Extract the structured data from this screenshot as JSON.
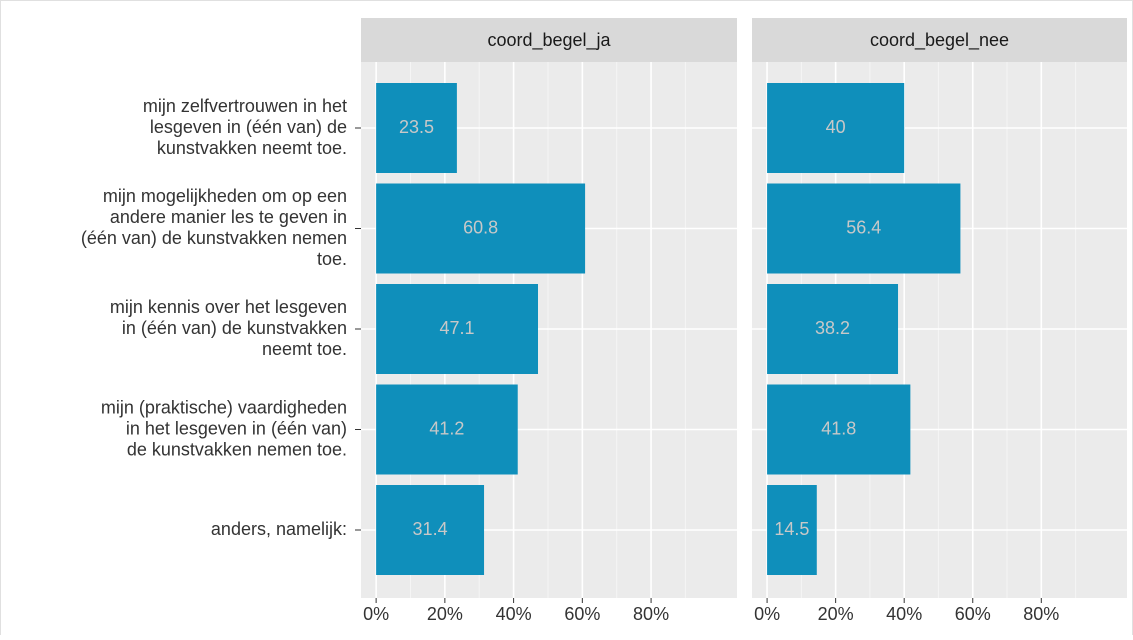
{
  "chart_data": {
    "type": "bar",
    "facet": true,
    "categories": [
      [
        "mijn zelfvertrouwen in het",
        "lesgeven in (één van) de",
        "kunstvakken neemt toe."
      ],
      [
        "mijn mogelijkheden om op een",
        "andere manier les te geven in",
        "(één van) de kunstvakken nemen",
        "toe."
      ],
      [
        "mijn kennis over het lesgeven",
        "in (één van) de kunstvakken",
        "neemt toe."
      ],
      [
        "mijn (praktische) vaardigheden",
        "in het lesgeven in (één van)",
        "de kunstvakken nemen toe."
      ],
      [
        "anders, namelijk:"
      ]
    ],
    "series": [
      {
        "name": "coord_begel_ja",
        "color": "#0f8fbb",
        "values": [
          23.5,
          60.8,
          47.1,
          41.2,
          31.4
        ]
      },
      {
        "name": "coord_begel_nee",
        "color": "#0f8fbb",
        "values": [
          40,
          56.4,
          38.2,
          41.8,
          14.5
        ]
      }
    ],
    "xlim": [
      -4.4,
      105
    ],
    "xticks": [
      {
        "value": 0,
        "label": "0%"
      },
      {
        "value": 20,
        "label": "20%"
      },
      {
        "value": 40,
        "label": "40%"
      },
      {
        "value": 60,
        "label": "60%"
      },
      {
        "value": 80,
        "label": "80%"
      }
    ],
    "grid": true
  }
}
